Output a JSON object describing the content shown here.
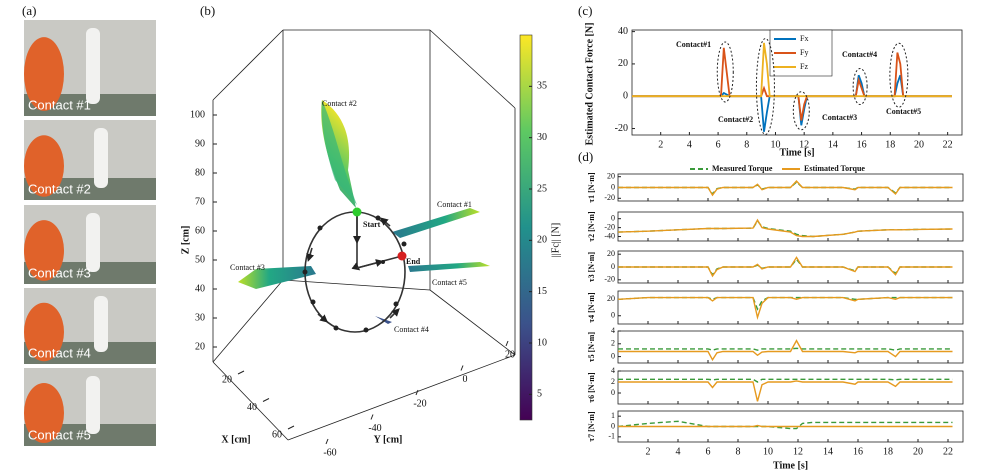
{
  "panel_labels": [
    "(a)",
    "(b)",
    "(c)",
    "(d)"
  ],
  "photos": [
    {
      "label": "Contact #1"
    },
    {
      "label": "Contact #2"
    },
    {
      "label": "Contact #3"
    },
    {
      "label": "Contact #4"
    },
    {
      "label": "Contact #5"
    }
  ],
  "chart_data": [
    {
      "type": "surface3d",
      "xlabel": "X [cm]",
      "ylabel": "Y [cm]",
      "zlabel": "Z [cm]",
      "xlim": [
        20,
        60
      ],
      "xticks": [
        20,
        40,
        60
      ],
      "ylim": [
        -70,
        20
      ],
      "yticks": [
        -60,
        -40,
        -20,
        0,
        20
      ],
      "zlim": [
        20,
        100
      ],
      "zticks": [
        20,
        30,
        40,
        50,
        60,
        70,
        80,
        90,
        100
      ],
      "colorbar": {
        "label": "||Fc|| [N]",
        "lim": [
          2.5,
          40
        ],
        "ticks": [
          5,
          10,
          15,
          20,
          25,
          30,
          35
        ]
      },
      "annotations": [
        "Contact #2",
        "Contact #1",
        "Contact #3",
        "Contact #5",
        "Contact #4",
        "Start",
        "End"
      ]
    },
    {
      "type": "line",
      "ylabel": "Estimated Contact Force [N]",
      "xlabel": "Time [s]",
      "xlim": [
        0,
        23
      ],
      "xticks": [
        2,
        4,
        6,
        8,
        10,
        12,
        14,
        16,
        18,
        20,
        22
      ],
      "ylim": [
        -24,
        41
      ],
      "yticks": [
        -20,
        0,
        20,
        40
      ],
      "x": [
        0,
        6.2,
        6.4,
        6.6,
        6.8,
        9.0,
        9.2,
        9.4,
        9.6,
        11.6,
        11.8,
        12.0,
        12.2,
        15.6,
        15.8,
        16.0,
        16.2,
        18.3,
        18.5,
        18.7,
        18.9,
        22.3
      ],
      "series": [
        {
          "name": "Fx",
          "color": "#0072bd",
          "values": [
            0,
            0,
            2,
            1,
            0,
            0,
            -22,
            -10,
            0,
            0,
            -18,
            -8,
            0,
            0,
            13,
            8,
            0,
            0,
            8,
            13,
            0,
            0
          ]
        },
        {
          "name": "Fy",
          "color": "#d95319",
          "values": [
            0,
            0,
            30,
            15,
            0,
            0,
            5,
            0,
            0,
            0,
            -15,
            -5,
            0,
            0,
            10,
            5,
            0,
            0,
            27,
            20,
            0,
            0
          ]
        },
        {
          "name": "Fz",
          "color": "#edb120",
          "values": [
            0,
            0,
            0,
            0,
            0,
            0,
            33,
            20,
            0,
            0,
            0,
            0,
            0,
            0,
            0,
            0,
            0,
            0,
            0,
            0,
            0,
            0
          ]
        }
      ],
      "annotations": [
        "Contact#1",
        "Contact#2",
        "Contact#3",
        "Contact#4",
        "Contact#5"
      ]
    },
    {
      "type": "multi-line",
      "xlabel": "Time [s]",
      "xlim": [
        0,
        23
      ],
      "xticks": [
        2,
        4,
        6,
        8,
        10,
        12,
        14,
        16,
        18,
        20,
        22
      ],
      "legend": [
        {
          "name": "Measured Torque",
          "color": "#3a9a3a",
          "dashed": true
        },
        {
          "name": "Estimated Torque",
          "color": "#e69a1f",
          "dashed": false
        }
      ],
      "x": [
        0,
        2,
        4,
        6,
        6.3,
        6.6,
        7,
        9,
        9.3,
        9.6,
        10,
        11.5,
        11.9,
        12.3,
        13,
        15,
        15.8,
        16,
        18,
        18.5,
        18.8,
        20,
        22.3
      ],
      "panels": [
        {
          "ylabel": "τ1 [N·m]",
          "ylim": [
            -25,
            25
          ],
          "yticks": [
            -20,
            0,
            20
          ],
          "series": [
            {
              "values": [
                0,
                0,
                0,
                0,
                -12,
                -2,
                0,
                0,
                5,
                -3,
                0,
                0,
                10,
                0,
                0,
                0,
                -3,
                0,
                0,
                -10,
                0,
                0,
                0
              ]
            },
            {
              "values": [
                0,
                0,
                0,
                0,
                -14,
                -3,
                0,
                0,
                6,
                -4,
                0,
                0,
                12,
                0,
                0,
                0,
                -4,
                0,
                0,
                -12,
                0,
                0,
                0
              ]
            }
          ]
        },
        {
          "ylabel": "τ2 [N·m]",
          "ylim": [
            -50,
            15
          ],
          "yticks": [
            -40,
            -20,
            0
          ],
          "series": [
            {
              "values": [
                -30,
                -28,
                -25,
                -22,
                -22,
                -22,
                -22,
                -21,
                -5,
                -18,
                -22,
                -28,
                -35,
                -38,
                -40,
                -35,
                -30,
                -28,
                -25,
                -25,
                -25,
                -24,
                -23
              ]
            },
            {
              "values": [
                -30,
                -28,
                -25,
                -22,
                -22,
                -22,
                -22,
                -21,
                -3,
                -20,
                -23,
                -30,
                -38,
                -40,
                -40,
                -35,
                -30,
                -28,
                -25,
                -25,
                -25,
                -24,
                -23
              ]
            }
          ]
        },
        {
          "ylabel": "τ3 [N·m]",
          "ylim": [
            -25,
            25
          ],
          "yticks": [
            -20,
            0,
            20
          ],
          "series": [
            {
              "values": [
                0,
                0,
                0,
                0,
                -12,
                -3,
                0,
                0,
                3,
                -2,
                0,
                0,
                12,
                0,
                0,
                0,
                -6,
                0,
                0,
                -10,
                0,
                0,
                0
              ]
            },
            {
              "values": [
                0,
                0,
                0,
                0,
                -14,
                -4,
                0,
                0,
                4,
                -3,
                0,
                0,
                15,
                0,
                0,
                0,
                -7,
                0,
                0,
                -12,
                0,
                0,
                0
              ]
            }
          ]
        },
        {
          "ylabel": "τ4 [N·m]",
          "ylim": [
            -10,
            30
          ],
          "yticks": [
            0,
            20
          ],
          "series": [
            {
              "values": [
                20,
                22,
                22,
                22,
                20,
                22,
                22,
                22,
                8,
                18,
                22,
                22,
                22,
                22,
                22,
                22,
                20,
                20,
                22,
                22,
                22,
                22,
                22
              ]
            },
            {
              "values": [
                20,
                22,
                22,
                22,
                18,
                22,
                22,
                22,
                -2,
                15,
                22,
                22,
                20,
                22,
                22,
                22,
                18,
                20,
                22,
                20,
                22,
                22,
                22
              ]
            }
          ]
        },
        {
          "ylabel": "τ5 [N·m]",
          "ylim": [
            -1,
            4
          ],
          "yticks": [
            0,
            2,
            4
          ],
          "series": [
            {
              "values": [
                1.2,
                1.2,
                1.2,
                1.2,
                1.0,
                1.2,
                1.2,
                1.2,
                1.0,
                1.2,
                1.2,
                1.2,
                1.3,
                1.2,
                1.2,
                1.2,
                1.2,
                1.2,
                1.2,
                1.0,
                1.2,
                1.2,
                1.2
              ]
            },
            {
              "values": [
                0.8,
                0.8,
                0.8,
                0.8,
                -0.5,
                0.6,
                0.8,
                0.8,
                0.2,
                0.7,
                0.8,
                0.8,
                2.5,
                0.8,
                0.8,
                0.8,
                0.6,
                0.8,
                0.8,
                0,
                0.8,
                0.8,
                0.8
              ]
            }
          ]
        },
        {
          "ylabel": "τ6 [N·m]",
          "ylim": [
            -2,
            4
          ],
          "yticks": [
            0,
            2,
            4
          ],
          "series": [
            {
              "values": [
                2.5,
                2.5,
                2.5,
                2.5,
                2.4,
                2.5,
                2.5,
                2.5,
                2.0,
                2.5,
                2.5,
                2.5,
                2.5,
                2.5,
                2.5,
                2.5,
                2.5,
                2.5,
                2.5,
                2.4,
                2.5,
                2.5,
                2.5
              ]
            },
            {
              "values": [
                2,
                2,
                2,
                2,
                1,
                2,
                2,
                2,
                -1.5,
                1.5,
                2,
                2,
                2.2,
                2,
                2,
                2,
                1.6,
                2,
                2,
                1.2,
                2,
                2,
                2
              ]
            }
          ]
        },
        {
          "ylabel": "τ7 [N·m]",
          "ylim": [
            -1.5,
            1.5
          ],
          "yticks": [
            -1,
            0,
            1
          ],
          "series": [
            {
              "values": [
                0,
                0.3,
                0.5,
                0,
                0,
                0,
                0,
                0,
                0,
                0,
                0,
                -0.2,
                -0.2,
                0.3,
                0.4,
                0.4,
                0.4,
                0.4,
                0.4,
                0.4,
                0.4,
                0.4,
                0.4
              ]
            },
            {
              "values": [
                0,
                0,
                0,
                0,
                0,
                0,
                0,
                0,
                0.1,
                0,
                0,
                0,
                0,
                0,
                0,
                0,
                0,
                0,
                0,
                0,
                0,
                0,
                0
              ]
            }
          ]
        }
      ]
    }
  ]
}
